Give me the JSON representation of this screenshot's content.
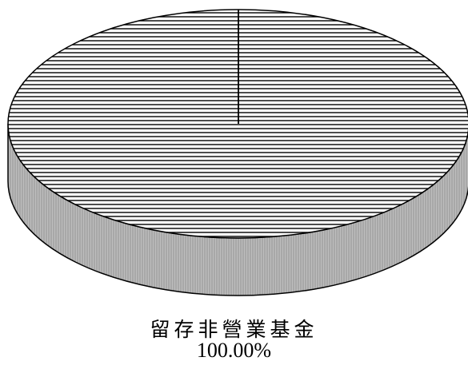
{
  "chart_data": {
    "type": "pie",
    "slices": [
      {
        "label": "留存非營業基金",
        "value": 100.0,
        "value_label": "100.00%"
      }
    ],
    "legend": "none",
    "style": "3d-hatched",
    "colors": {
      "top_face_hatch": "#000000",
      "top_face_background": "#ffffff",
      "side_face": "#b9b9b9",
      "outline": "#000000"
    }
  }
}
